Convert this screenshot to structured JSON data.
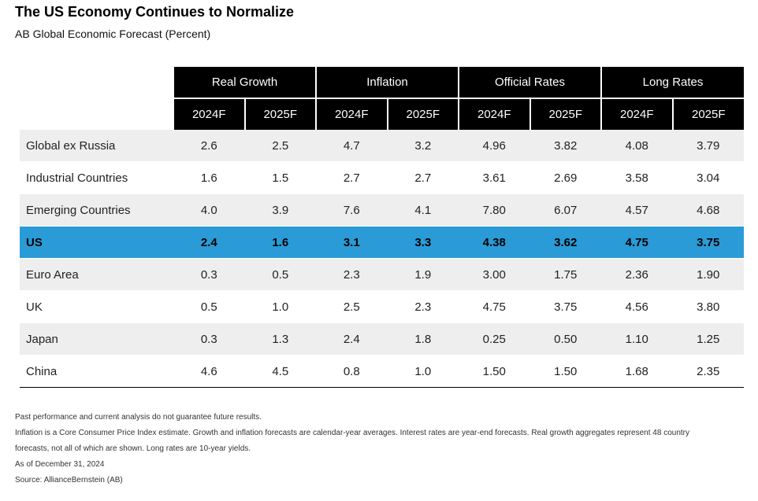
{
  "title": "The US Economy Continues to Normalize",
  "subtitle": "AB Global Economic Forecast (Percent)",
  "chart_data": {
    "type": "table",
    "groups": [
      "Real Growth",
      "Inflation",
      "Official Rates",
      "Long Rates"
    ],
    "years": [
      "2024F",
      "2025F"
    ],
    "highlight_row": "US",
    "highlight_color": "#2a9bd6",
    "rows": [
      {
        "label": "Global ex Russia",
        "values": [
          "2.6",
          "2.5",
          "4.7",
          "3.2",
          "4.96",
          "3.82",
          "4.08",
          "3.79"
        ]
      },
      {
        "label": "Industrial Countries",
        "values": [
          "1.6",
          "1.5",
          "2.7",
          "2.7",
          "3.61",
          "2.69",
          "3.58",
          "3.04"
        ]
      },
      {
        "label": "Emerging Countries",
        "values": [
          "4.0",
          "3.9",
          "7.6",
          "4.1",
          "7.80",
          "6.07",
          "4.57",
          "4.68"
        ]
      },
      {
        "label": "US",
        "values": [
          "2.4",
          "1.6",
          "3.1",
          "3.3",
          "4.38",
          "3.62",
          "4.75",
          "3.75"
        ]
      },
      {
        "label": "Euro Area",
        "values": [
          "0.3",
          "0.5",
          "2.3",
          "1.9",
          "3.00",
          "1.75",
          "2.36",
          "1.90"
        ]
      },
      {
        "label": "UK",
        "values": [
          "0.5",
          "1.0",
          "2.5",
          "2.3",
          "4.75",
          "3.75",
          "4.56",
          "3.80"
        ]
      },
      {
        "label": "Japan",
        "values": [
          "0.3",
          "1.3",
          "2.4",
          "1.8",
          "0.25",
          "0.50",
          "1.10",
          "1.25"
        ]
      },
      {
        "label": "China",
        "values": [
          "4.6",
          "4.5",
          "0.8",
          "1.0",
          "1.50",
          "1.50",
          "1.68",
          "2.35"
        ]
      }
    ]
  },
  "notes": {
    "disclaimer": "Past performance and current analysis do not guarantee future results.",
    "line1": "Inflation is a Core Consumer Price Index estimate. Growth and inflation forecasts are calendar-year averages. Interest rates are year-end forecasts. Real growth aggregates represent 48 country",
    "line2": "forecasts, not all of which are shown. Long rates are 10-year yields.",
    "as_of": "As of December 31, 2024",
    "source": "Source: AllianceBernstein (AB)"
  }
}
